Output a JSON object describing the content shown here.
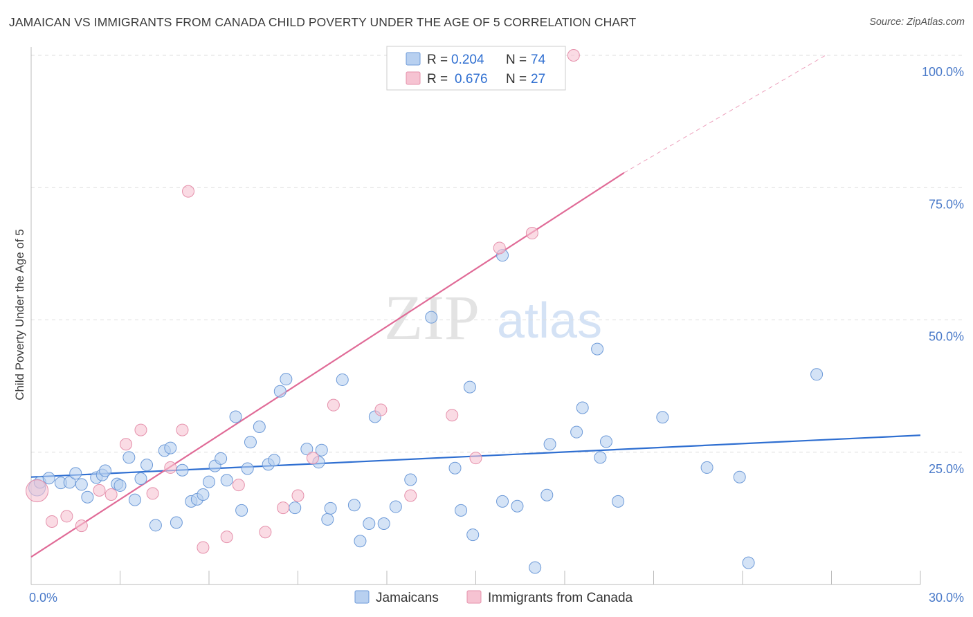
{
  "title": "JAMAICAN VS IMMIGRANTS FROM CANADA CHILD POVERTY UNDER THE AGE OF 5 CORRELATION CHART",
  "source": "Source: ZipAtlas.com",
  "watermark": {
    "zip": "ZIP",
    "atlas": "atlas"
  },
  "colors": {
    "blue_fill": "#b8d0f0",
    "blue_stroke": "#6d9ad8",
    "blue_line": "#2f6fd1",
    "pink_fill": "#f6c3d2",
    "pink_stroke": "#e590ab",
    "pink_line": "#e06b97",
    "grid": "#dddddd",
    "tick_label": "#4a7ac9"
  },
  "legend_top": {
    "rows": [
      {
        "r_label": "R =",
        "r_value": "0.204",
        "n_label": "N =",
        "n_value": "74"
      },
      {
        "r_label": "R =",
        "r_value": "0.676",
        "n_label": "N =",
        "n_value": "27"
      }
    ]
  },
  "legend_bottom": [
    "Jamaicans",
    "Immigrants from Canada"
  ],
  "chart_data": {
    "type": "scatter",
    "title": "JAMAICAN VS IMMIGRANTS FROM CANADA CHILD POVERTY UNDER THE AGE OF 5 CORRELATION CHART",
    "xlabel": "",
    "ylabel": "Child Poverty Under the Age of 5",
    "xlim": [
      0,
      30
    ],
    "ylim": [
      0,
      100
    ],
    "x_tick_labels": [
      {
        "value": 0,
        "label": "0.0%"
      },
      {
        "value": 30,
        "label": "30.0%"
      }
    ],
    "y_tick_labels": [
      {
        "value": 25,
        "label": "25.0%"
      },
      {
        "value": 50,
        "label": "50.0%"
      },
      {
        "value": 75,
        "label": "75.0%"
      },
      {
        "value": 100,
        "label": "100.0%"
      }
    ],
    "grid": true,
    "legend_position": "top-center",
    "series": [
      {
        "name": "Jamaicans",
        "R": 0.204,
        "N": 74,
        "trend": {
          "x": [
            0,
            30
          ],
          "y": [
            20.3,
            28.2
          ]
        },
        "points": [
          [
            0.2,
            18.3
          ],
          [
            0.3,
            19.3
          ],
          [
            0.6,
            20.1
          ],
          [
            1.0,
            19.2
          ],
          [
            1.3,
            19.3
          ],
          [
            1.5,
            21.0
          ],
          [
            1.7,
            18.9
          ],
          [
            1.9,
            16.5
          ],
          [
            2.2,
            20.2
          ],
          [
            2.4,
            20.7
          ],
          [
            2.5,
            21.5
          ],
          [
            2.9,
            19.0
          ],
          [
            3.0,
            18.7
          ],
          [
            3.3,
            24.0
          ],
          [
            3.5,
            16.0
          ],
          [
            3.7,
            20.0
          ],
          [
            3.9,
            22.6
          ],
          [
            4.2,
            11.2
          ],
          [
            4.5,
            25.3
          ],
          [
            4.7,
            25.8
          ],
          [
            4.9,
            11.7
          ],
          [
            5.1,
            21.6
          ],
          [
            5.4,
            15.7
          ],
          [
            5.6,
            16.1
          ],
          [
            5.8,
            17.0
          ],
          [
            6.0,
            19.4
          ],
          [
            6.2,
            22.4
          ],
          [
            6.4,
            23.8
          ],
          [
            6.6,
            19.7
          ],
          [
            6.9,
            31.7
          ],
          [
            7.1,
            14.0
          ],
          [
            7.3,
            21.9
          ],
          [
            7.4,
            26.9
          ],
          [
            7.7,
            29.8
          ],
          [
            8.0,
            22.7
          ],
          [
            8.2,
            23.5
          ],
          [
            8.4,
            36.5
          ],
          [
            8.6,
            38.8
          ],
          [
            8.9,
            14.5
          ],
          [
            9.3,
            25.6
          ],
          [
            9.7,
            23.1
          ],
          [
            9.8,
            25.4
          ],
          [
            10.0,
            12.3
          ],
          [
            10.1,
            14.4
          ],
          [
            10.5,
            38.7
          ],
          [
            10.9,
            15.0
          ],
          [
            11.1,
            8.2
          ],
          [
            11.4,
            11.5
          ],
          [
            11.6,
            31.7
          ],
          [
            11.9,
            11.5
          ],
          [
            12.3,
            14.7
          ],
          [
            12.8,
            19.8
          ],
          [
            13.5,
            50.5
          ],
          [
            14.3,
            22.0
          ],
          [
            14.5,
            14.0
          ],
          [
            14.8,
            37.3
          ],
          [
            14.9,
            9.4
          ],
          [
            15.9,
            15.7
          ],
          [
            15.9,
            62.2
          ],
          [
            16.4,
            14.8
          ],
          [
            17.0,
            3.2
          ],
          [
            17.4,
            16.9
          ],
          [
            17.5,
            26.5
          ],
          [
            18.4,
            28.8
          ],
          [
            18.6,
            33.4
          ],
          [
            19.1,
            44.5
          ],
          [
            19.2,
            24.0
          ],
          [
            19.4,
            27.0
          ],
          [
            19.8,
            15.7
          ],
          [
            21.3,
            31.6
          ],
          [
            22.8,
            22.1
          ],
          [
            23.9,
            20.3
          ],
          [
            24.2,
            4.1
          ],
          [
            26.5,
            39.7
          ]
        ]
      },
      {
        "name": "Immigrants from Canada",
        "R": 0.676,
        "N": 27,
        "trend": {
          "x": [
            0,
            20
          ],
          "y": [
            5.2,
            77.8
          ]
        },
        "trend_dashed": {
          "x": [
            20,
            26.8
          ],
          "y": [
            77.8,
            100
          ]
        },
        "points": [
          [
            0.2,
            17.7
          ],
          [
            0.7,
            11.9
          ],
          [
            1.2,
            12.9
          ],
          [
            1.7,
            11.1
          ],
          [
            2.3,
            17.8
          ],
          [
            2.7,
            17.0
          ],
          [
            3.2,
            26.5
          ],
          [
            3.7,
            29.2
          ],
          [
            4.1,
            17.2
          ],
          [
            4.7,
            22.1
          ],
          [
            5.1,
            29.2
          ],
          [
            5.3,
            74.3
          ],
          [
            5.8,
            7.0
          ],
          [
            6.6,
            9.0
          ],
          [
            7.0,
            18.8
          ],
          [
            7.9,
            9.9
          ],
          [
            8.5,
            14.5
          ],
          [
            9.0,
            16.8
          ],
          [
            9.5,
            23.9
          ],
          [
            10.2,
            33.9
          ],
          [
            11.8,
            33.0
          ],
          [
            12.8,
            16.8
          ],
          [
            14.2,
            32.0
          ],
          [
            15.0,
            23.9
          ],
          [
            15.8,
            63.6
          ],
          [
            16.9,
            66.4
          ],
          [
            18.3,
            100
          ]
        ]
      }
    ]
  }
}
